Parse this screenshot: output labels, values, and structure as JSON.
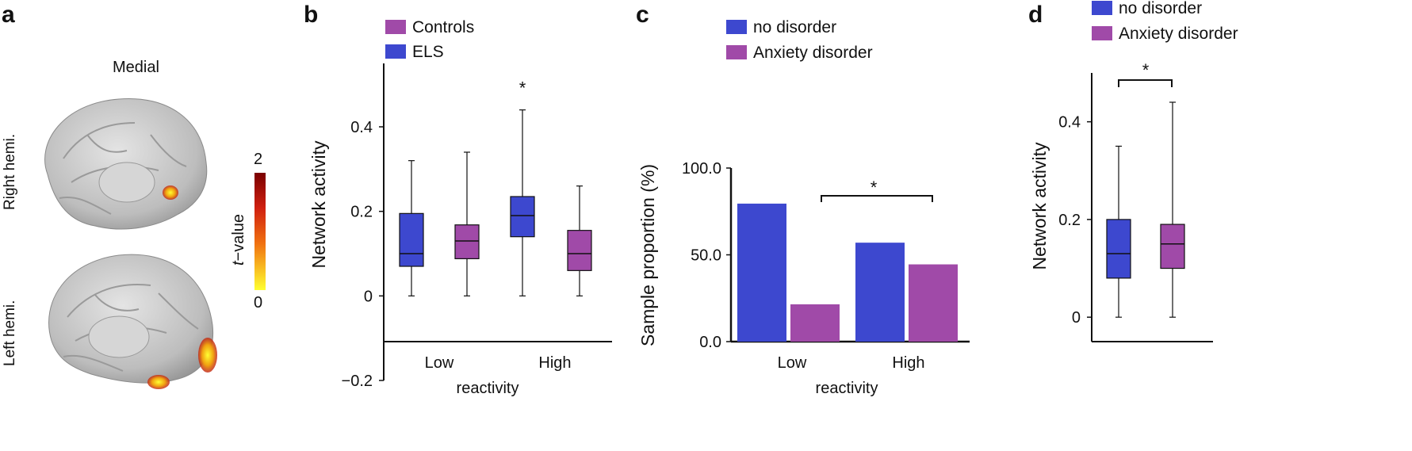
{
  "colors": {
    "purple": "#a04aa8",
    "blue": "#3d48cf",
    "brain": "#c9c9c9"
  },
  "panel_a": {
    "letter": "a",
    "view_label": "Medial",
    "right_hemi_label": "Right hemi.",
    "left_hemi_label": "Left hemi.",
    "colorbar_label_prefix": "t",
    "colorbar_label_suffix": "−value",
    "colorbar_max": "2",
    "colorbar_min": "0"
  },
  "panel_b": {
    "letter": "b"
  },
  "panel_c": {
    "letter": "c"
  },
  "panel_d": {
    "letter": "d"
  },
  "chart_data": [
    {
      "id": "b",
      "type": "box",
      "ylabel": "Network activity",
      "xlabel": "reactivity",
      "ylim": [
        -0.2,
        0.55
      ],
      "yticks": [
        -0.2,
        0,
        0.2,
        0.4
      ],
      "ytick_labels": [
        "−0.2",
        "0",
        "0.2",
        "0.4"
      ],
      "categories": [
        "Low",
        "High"
      ],
      "legend": [
        {
          "label": "Controls",
          "color": "#a04aa8"
        },
        {
          "label": "ELS",
          "color": "#3d48cf"
        }
      ],
      "boxes": [
        {
          "category": "Low",
          "group": "ELS",
          "color": "#3d48cf",
          "min": 0.0,
          "q1": 0.07,
          "median": 0.1,
          "q3": 0.195,
          "max": 0.32
        },
        {
          "category": "Low",
          "group": "Controls",
          "color": "#a04aa8",
          "min": 0.0,
          "q1": 0.088,
          "median": 0.13,
          "q3": 0.168,
          "max": 0.34
        },
        {
          "category": "High",
          "group": "ELS",
          "color": "#3d48cf",
          "min": 0.0,
          "q1": 0.14,
          "median": 0.19,
          "q3": 0.235,
          "max": 0.44
        },
        {
          "category": "High",
          "group": "Controls",
          "color": "#a04aa8",
          "min": 0.0,
          "q1": 0.06,
          "median": 0.1,
          "q3": 0.155,
          "max": 0.26
        }
      ],
      "annotations": [
        {
          "text": "*",
          "category": "High",
          "group": "ELS"
        }
      ]
    },
    {
      "id": "c",
      "type": "bar",
      "ylabel": "Sample proportion (%)",
      "xlabel": "reactivity",
      "ylim": [
        0,
        100
      ],
      "yticks": [
        0,
        50,
        100
      ],
      "ytick_labels": [
        "0.0",
        "50.0",
        "100.0"
      ],
      "categories": [
        "Low",
        "High"
      ],
      "legend": [
        {
          "label": "no disorder",
          "color": "#3d48cf"
        },
        {
          "label": "Anxiety disorder",
          "color": "#a04aa8"
        }
      ],
      "series": [
        {
          "name": "no disorder",
          "color": "#3d48cf",
          "values": [
            79.5,
            57
          ]
        },
        {
          "name": "Anxiety disorder",
          "color": "#a04aa8",
          "values": [
            21.5,
            44.5
          ]
        }
      ],
      "annotations": [
        {
          "text": "*",
          "between": [
            "Low",
            "High"
          ]
        }
      ]
    },
    {
      "id": "d",
      "type": "box",
      "ylabel": "Network activity",
      "ylim": [
        -0.05,
        0.5
      ],
      "yticks": [
        0,
        0.2,
        0.4
      ],
      "ytick_labels": [
        "0",
        "0.2",
        "0.4"
      ],
      "legend": [
        {
          "label": "no disorder",
          "color": "#3d48cf"
        },
        {
          "label": "Anxiety disorder",
          "color": "#a04aa8"
        }
      ],
      "boxes": [
        {
          "group": "no disorder",
          "color": "#3d48cf",
          "min": 0.0,
          "q1": 0.08,
          "median": 0.13,
          "q3": 0.2,
          "max": 0.35
        },
        {
          "group": "Anxiety disorder",
          "color": "#a04aa8",
          "min": 0.0,
          "q1": 0.1,
          "median": 0.15,
          "q3": 0.19,
          "max": 0.44
        }
      ],
      "annotations": [
        {
          "text": "*",
          "between": [
            "no disorder",
            "Anxiety disorder"
          ]
        }
      ]
    }
  ]
}
